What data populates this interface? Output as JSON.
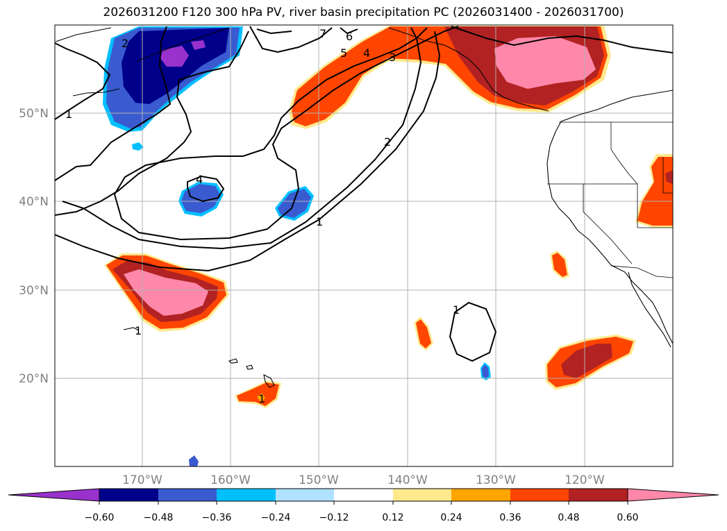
{
  "title": "2026031200 F120 300 hPa PV, river basin precipitation PC (2026031400 - 2026031700)",
  "map": {
    "lat_labels": [
      "50°N",
      "40°N",
      "30°N",
      "20°N"
    ],
    "lon_labels": [
      "170°W",
      "160°W",
      "150°W",
      "140°W",
      "130°W",
      "120°W"
    ],
    "pv_contour_labels": [
      "1",
      "2",
      "1",
      "7",
      "6",
      "5",
      "4",
      "3",
      "2",
      "1",
      "4",
      "1",
      "1"
    ]
  },
  "colorbar": {
    "ticks": [
      "−0.60",
      "−0.48",
      "−0.36",
      "−0.24",
      "−0.12",
      "0.12",
      "0.24",
      "0.36",
      "0.48",
      "0.60"
    ],
    "colors": [
      "#9932cc",
      "#00008b",
      "#3a5bd0",
      "#00bfff",
      "#b0e2ff",
      "#ffffff",
      "#ffe98c",
      "#ffa500",
      "#ff4500",
      "#b22222",
      "#ff88aa"
    ]
  }
}
